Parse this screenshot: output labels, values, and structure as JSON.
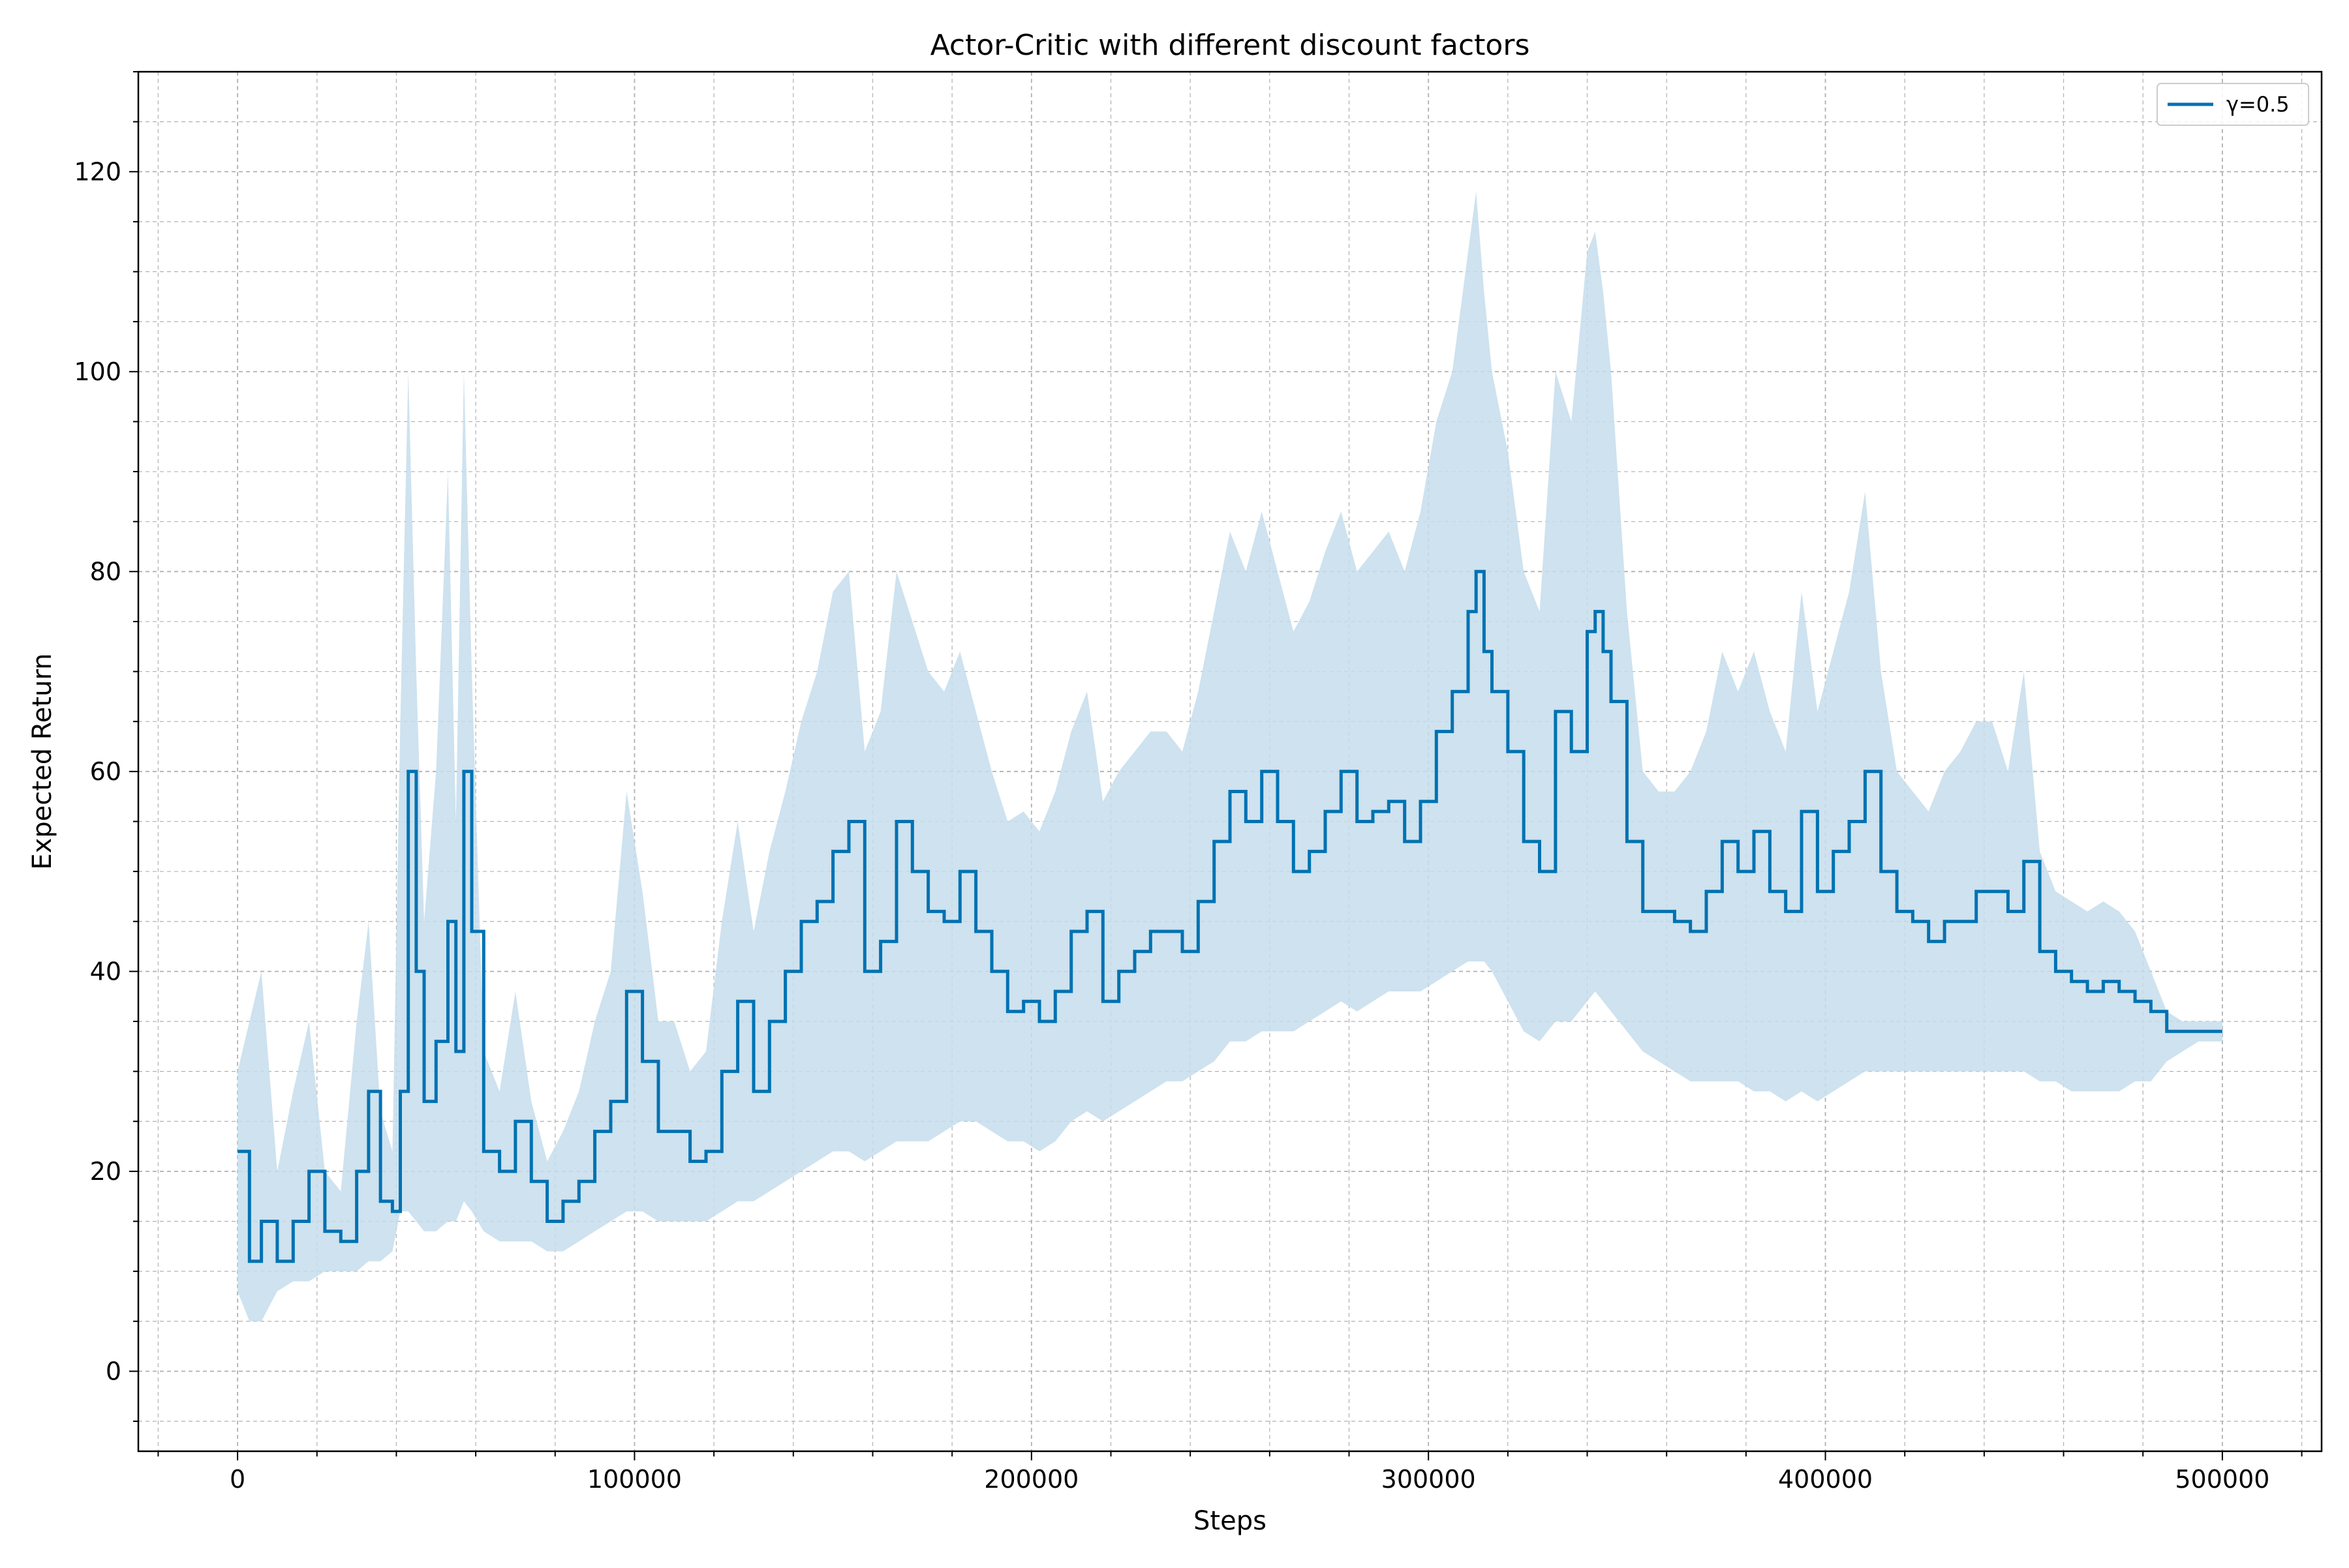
{
  "chart_data": {
    "type": "line",
    "title": "Actor-Critic with different discount factors",
    "xlabel": "Steps",
    "ylabel": "Expected Return",
    "xlim": [
      -25000,
      525000
    ],
    "ylim": [
      -8,
      130
    ],
    "x_ticks": [
      0,
      100000,
      200000,
      300000,
      400000,
      500000
    ],
    "y_ticks": [
      0,
      20,
      40,
      60,
      80,
      100,
      120
    ],
    "x_minor_step": 20000,
    "y_minor_step": 5,
    "grid": true,
    "legend_position": "top-right",
    "colors": {
      "line": "#0072b2",
      "band": "#c6ddec",
      "grid": "#b0b0b0",
      "axes": "#000000"
    },
    "series": [
      {
        "name": "γ=0.5",
        "x": [
          0,
          3000,
          6000,
          10000,
          14000,
          18000,
          22000,
          26000,
          30000,
          33000,
          36000,
          39000,
          41000,
          43000,
          45000,
          47000,
          50000,
          53000,
          55000,
          57000,
          59000,
          62000,
          66000,
          70000,
          74000,
          78000,
          82000,
          86000,
          90000,
          94000,
          98000,
          102000,
          106000,
          110000,
          114000,
          118000,
          122000,
          126000,
          130000,
          134000,
          138000,
          142000,
          146000,
          150000,
          154000,
          158000,
          162000,
          166000,
          170000,
          174000,
          178000,
          182000,
          186000,
          190000,
          194000,
          198000,
          202000,
          206000,
          210000,
          214000,
          218000,
          222000,
          226000,
          230000,
          234000,
          238000,
          242000,
          246000,
          250000,
          254000,
          258000,
          262000,
          266000,
          270000,
          274000,
          278000,
          282000,
          286000,
          290000,
          294000,
          298000,
          302000,
          306000,
          310000,
          312000,
          314000,
          316000,
          320000,
          324000,
          328000,
          332000,
          336000,
          340000,
          342000,
          344000,
          346000,
          350000,
          354000,
          358000,
          362000,
          366000,
          370000,
          374000,
          378000,
          382000,
          386000,
          390000,
          394000,
          398000,
          402000,
          406000,
          410000,
          414000,
          418000,
          422000,
          426000,
          430000,
          434000,
          438000,
          442000,
          446000,
          450000,
          454000,
          458000,
          462000,
          466000,
          470000,
          474000,
          478000,
          482000,
          486000,
          490000,
          494000,
          500000
        ],
        "mean": [
          22,
          11,
          15,
          11,
          15,
          20,
          14,
          13,
          20,
          28,
          17,
          16,
          28,
          60,
          40,
          27,
          33,
          45,
          32,
          60,
          44,
          22,
          20,
          25,
          19,
          15,
          17,
          19,
          24,
          27,
          38,
          31,
          24,
          24,
          21,
          22,
          30,
          37,
          28,
          35,
          40,
          45,
          47,
          52,
          55,
          40,
          43,
          55,
          50,
          46,
          45,
          50,
          44,
          40,
          36,
          37,
          35,
          38,
          44,
          46,
          37,
          40,
          42,
          44,
          44,
          42,
          47,
          53,
          58,
          55,
          60,
          55,
          50,
          52,
          56,
          60,
          55,
          56,
          57,
          53,
          57,
          64,
          68,
          76,
          80,
          72,
          68,
          62,
          53,
          50,
          66,
          62,
          74,
          76,
          72,
          67,
          53,
          46,
          46,
          45,
          44,
          48,
          53,
          50,
          54,
          48,
          46,
          56,
          48,
          52,
          55,
          60,
          50,
          46,
          45,
          43,
          45,
          45,
          48,
          48,
          46,
          51,
          42,
          40,
          39,
          38,
          39,
          38,
          37,
          36,
          34,
          34,
          34,
          34
        ],
        "lower": [
          8,
          5,
          5,
          8,
          9,
          9,
          10,
          10,
          10,
          11,
          11,
          12,
          16,
          16,
          15,
          14,
          14,
          15,
          15,
          17,
          16,
          14,
          13,
          13,
          13,
          12,
          12,
          13,
          14,
          15,
          16,
          16,
          15,
          15,
          15,
          15,
          16,
          17,
          17,
          18,
          19,
          20,
          21,
          22,
          22,
          21,
          22,
          23,
          23,
          23,
          24,
          25,
          25,
          24,
          23,
          23,
          22,
          23,
          25,
          26,
          25,
          26,
          27,
          28,
          29,
          29,
          30,
          31,
          33,
          33,
          34,
          34,
          34,
          35,
          36,
          37,
          36,
          37,
          38,
          38,
          38,
          39,
          40,
          41,
          41,
          41,
          40,
          37,
          34,
          33,
          35,
          35,
          37,
          38,
          37,
          36,
          34,
          32,
          31,
          30,
          29,
          29,
          29,
          29,
          28,
          28,
          27,
          28,
          27,
          28,
          29,
          30,
          30,
          30,
          30,
          30,
          30,
          30,
          30,
          30,
          30,
          30,
          29,
          29,
          28,
          28,
          28,
          28,
          29,
          29,
          31,
          32,
          33,
          33
        ],
        "upper": [
          30,
          35,
          40,
          20,
          28,
          35,
          20,
          18,
          35,
          45,
          26,
          22,
          65,
          100,
          70,
          45,
          60,
          90,
          55,
          100,
          70,
          32,
          28,
          38,
          27,
          21,
          24,
          28,
          35,
          40,
          58,
          48,
          35,
          35,
          30,
          32,
          45,
          55,
          44,
          52,
          58,
          65,
          70,
          78,
          80,
          62,
          66,
          80,
          75,
          70,
          68,
          72,
          66,
          60,
          55,
          56,
          54,
          58,
          64,
          68,
          57,
          60,
          62,
          64,
          64,
          62,
          68,
          76,
          84,
          80,
          86,
          80,
          74,
          77,
          82,
          86,
          80,
          82,
          84,
          80,
          86,
          95,
          100,
          112,
          118,
          108,
          100,
          92,
          80,
          76,
          100,
          95,
          112,
          114,
          108,
          100,
          76,
          60,
          58,
          58,
          60,
          64,
          72,
          68,
          72,
          66,
          62,
          78,
          66,
          72,
          78,
          88,
          70,
          60,
          58,
          56,
          60,
          62,
          65,
          65,
          60,
          70,
          52,
          48,
          47,
          46,
          47,
          46,
          44,
          40,
          36,
          35,
          35,
          35
        ]
      }
    ]
  }
}
